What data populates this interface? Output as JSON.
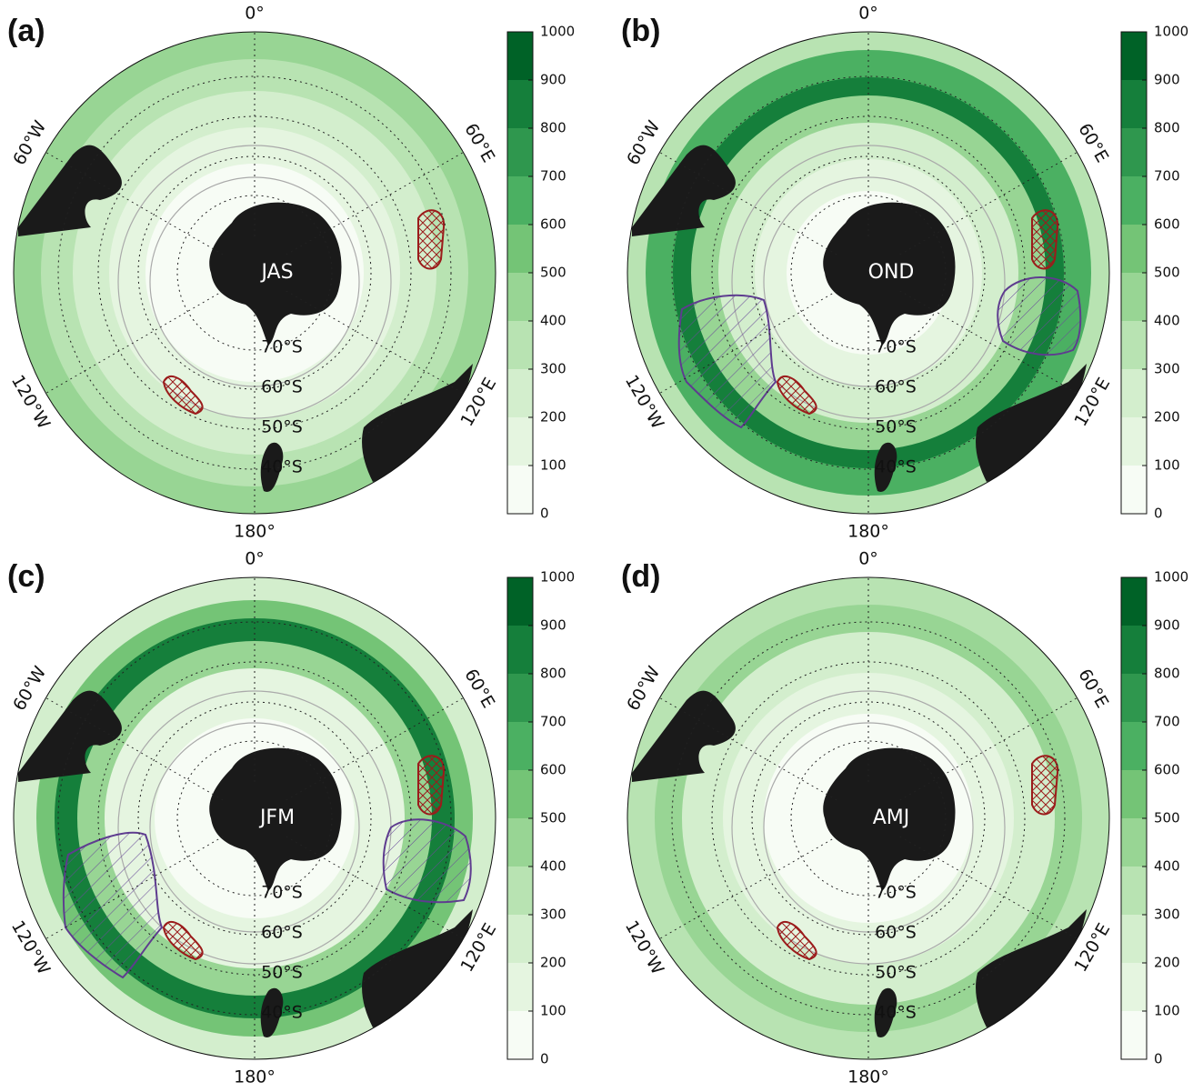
{
  "panels": [
    {
      "label": "(a)",
      "season": "JAS"
    },
    {
      "label": "(b)",
      "season": "OND"
    },
    {
      "label": "(c)",
      "season": "JFM"
    },
    {
      "label": "(d)",
      "season": "AMJ"
    }
  ],
  "map": {
    "lon_labels": [
      "0°",
      "60°E",
      "120°E",
      "180°",
      "120°W",
      "60°W"
    ],
    "lat_labels": [
      "70°S",
      "60°S",
      "50°S",
      "40°S"
    ]
  },
  "colorbar": {
    "ticks": [
      0,
      100,
      200,
      300,
      400,
      500,
      600,
      700,
      800,
      900,
      1000
    ],
    "colors": [
      "#f7fcf5",
      "#e5f5e0",
      "#d3eecd",
      "#b8e3b2",
      "#98d594",
      "#74c476",
      "#4bb062",
      "#2f974e",
      "#157f3b",
      "#006227",
      "#00441b"
    ]
  }
}
